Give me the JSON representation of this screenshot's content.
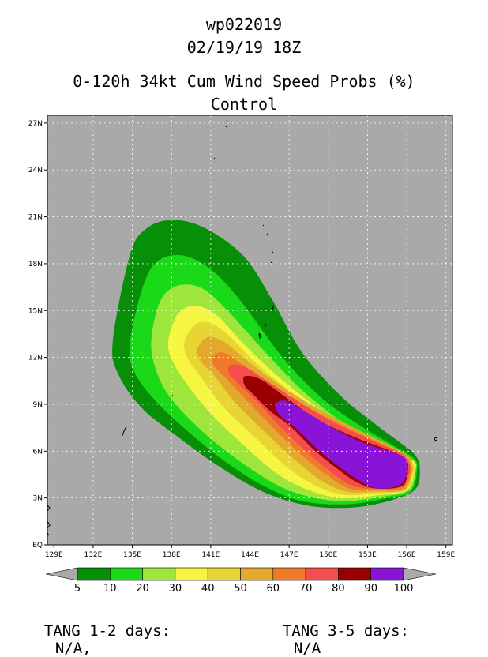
{
  "header": {
    "storm_id": "wp022019",
    "datetime": "02/19/19 18Z",
    "title": "0-120h 34kt Cum Wind Speed Probs (%)",
    "subtitle": "Control"
  },
  "colors": {
    "background_land": "#a9a9a9",
    "levels": [
      "#088f08",
      "#19d919",
      "#9ee63c",
      "#f5f542",
      "#e6d532",
      "#e3a92d",
      "#ee7a2a",
      "#f44d4d",
      "#9b0000",
      "#8a13d8"
    ]
  },
  "chart_data": {
    "type": "heatmap",
    "title": "0-120h 34kt Cum Wind Speed Probs (%)",
    "xlim": [
      128.5,
      159.5
    ],
    "ylim": [
      0,
      27.5
    ],
    "x_ticks": [
      129,
      132,
      135,
      138,
      141,
      144,
      147,
      150,
      153,
      156,
      159
    ],
    "x_tick_labels": [
      "129E",
      "132E",
      "135E",
      "138E",
      "141E",
      "144E",
      "147E",
      "150E",
      "153E",
      "156E",
      "159E"
    ],
    "y_ticks": [
      0,
      3,
      6,
      9,
      12,
      15,
      18,
      21,
      24,
      27
    ],
    "y_tick_labels": [
      "EQ",
      "3N",
      "6N",
      "9N",
      "12N",
      "15N",
      "18N",
      "21N",
      "24N",
      "27N"
    ],
    "levels": [
      5,
      10,
      20,
      30,
      40,
      50,
      60,
      70,
      80,
      90,
      100
    ],
    "level_labels": [
      "5",
      "10",
      "20",
      "30",
      "40",
      "50",
      "60",
      "70",
      "80",
      "90",
      "100"
    ],
    "contours": [
      {
        "level": 5,
        "points": [
          [
            133.5,
            13
          ],
          [
            134.8,
            18.5
          ],
          [
            136,
            20.2
          ],
          [
            138,
            20.8
          ],
          [
            140.5,
            20.3
          ],
          [
            143.5,
            18.5
          ],
          [
            145.7,
            15.7
          ],
          [
            148,
            12.3
          ],
          [
            151,
            9.5
          ],
          [
            153.5,
            7.8
          ],
          [
            155.4,
            6.6
          ],
          [
            156.6,
            5.8
          ],
          [
            157,
            4.9
          ],
          [
            156.7,
            3.6
          ],
          [
            155,
            2.9
          ],
          [
            152,
            2.4
          ],
          [
            148.5,
            2.5
          ],
          [
            145,
            3.4
          ],
          [
            141.5,
            5.1
          ],
          [
            138.5,
            6.9
          ],
          [
            135.8,
            8.7
          ],
          [
            134,
            10.8
          ]
        ]
      },
      {
        "level": 10,
        "points": [
          [
            134.8,
            12.8
          ],
          [
            135.8,
            16.5
          ],
          [
            137,
            18.2
          ],
          [
            139,
            18.5
          ],
          [
            141.2,
            17.5
          ],
          [
            143.5,
            15.4
          ],
          [
            146.5,
            12
          ],
          [
            149.5,
            9.4
          ],
          [
            152.5,
            7.6
          ],
          [
            155.3,
            6.2
          ],
          [
            156.6,
            5.5
          ],
          [
            156.8,
            4.8
          ],
          [
            156.3,
            3.4
          ],
          [
            154.5,
            3
          ],
          [
            151.5,
            2.6
          ],
          [
            148,
            2.8
          ],
          [
            145,
            3.8
          ],
          [
            142,
            5.4
          ],
          [
            139.2,
            7.3
          ],
          [
            136.8,
            9.2
          ],
          [
            135.2,
            11
          ]
        ]
      },
      {
        "level": 20,
        "points": [
          [
            136.5,
            13.5
          ],
          [
            137.2,
            15.7
          ],
          [
            138.5,
            16.6
          ],
          [
            140.4,
            16.4
          ],
          [
            142.5,
            14.8
          ],
          [
            145,
            12.5
          ],
          [
            148,
            9.9
          ],
          [
            151.5,
            7.6
          ],
          [
            154.8,
            6.1
          ],
          [
            156.5,
            5.4
          ],
          [
            156.7,
            4.8
          ],
          [
            156.2,
            3.5
          ],
          [
            154.3,
            3.1
          ],
          [
            151,
            2.8
          ],
          [
            148,
            3.2
          ],
          [
            145.5,
            4.1
          ],
          [
            142.5,
            5.8
          ],
          [
            139.8,
            7.7
          ],
          [
            137.6,
            9.8
          ],
          [
            136.6,
            11.8
          ]
        ]
      },
      {
        "level": 30,
        "points": [
          [
            137.8,
            13.3
          ],
          [
            138.6,
            14.9
          ],
          [
            140,
            15.3
          ],
          [
            141.6,
            14.6
          ],
          [
            143.5,
            12.9
          ],
          [
            146,
            10.9
          ],
          [
            149.5,
            8.6
          ],
          [
            153,
            7
          ],
          [
            155.5,
            5.9
          ],
          [
            156.6,
            5.3
          ],
          [
            156.6,
            4.7
          ],
          [
            156,
            3.5
          ],
          [
            154,
            3.2
          ],
          [
            151,
            3
          ],
          [
            148.5,
            3.5
          ],
          [
            146,
            4.6
          ],
          [
            143.5,
            6.4
          ],
          [
            141,
            8.4
          ],
          [
            139,
            10.5
          ],
          [
            137.9,
            12.1
          ]
        ]
      },
      {
        "level": 40,
        "points": [
          [
            139,
            13
          ],
          [
            139.8,
            14.1
          ],
          [
            141,
            14.2
          ],
          [
            142.5,
            13.3
          ],
          [
            144.5,
            11.6
          ],
          [
            147,
            9.9
          ],
          [
            150.5,
            8
          ],
          [
            153.8,
            6.7
          ],
          [
            155.9,
            5.8
          ],
          [
            156.5,
            5.2
          ],
          [
            156.5,
            4.6
          ],
          [
            155.9,
            3.5
          ],
          [
            153.8,
            3.3
          ],
          [
            151.2,
            3.2
          ],
          [
            149,
            3.8
          ],
          [
            146.8,
            5
          ],
          [
            144.5,
            6.8
          ],
          [
            142,
            8.8
          ],
          [
            140.2,
            10.8
          ],
          [
            139.2,
            12
          ]
        ]
      },
      {
        "level": 50,
        "points": [
          [
            140,
            12.6
          ],
          [
            140.8,
            13.3
          ],
          [
            142,
            13
          ],
          [
            143.5,
            12
          ],
          [
            145.5,
            10.7
          ],
          [
            148,
            9.3
          ],
          [
            151.5,
            7.7
          ],
          [
            154.4,
            6.5
          ],
          [
            156.1,
            5.7
          ],
          [
            156.4,
            5.1
          ],
          [
            156.4,
            4.6
          ],
          [
            155.8,
            3.5
          ],
          [
            153.6,
            3.4
          ],
          [
            151.4,
            3.4
          ],
          [
            149.5,
            4.1
          ],
          [
            147.5,
            5.4
          ],
          [
            145.3,
            7.1
          ],
          [
            143,
            9
          ],
          [
            141.2,
            10.9
          ],
          [
            140.2,
            11.8
          ]
        ]
      },
      {
        "level": 60,
        "points": [
          [
            141.2,
            12.1
          ],
          [
            142,
            12.3
          ],
          [
            143.5,
            11.5
          ],
          [
            145.3,
            10.4
          ],
          [
            147.5,
            9.2
          ],
          [
            150.5,
            7.9
          ],
          [
            153.7,
            6.6
          ],
          [
            155.8,
            5.8
          ],
          [
            156.3,
            5.1
          ],
          [
            156.3,
            4.6
          ],
          [
            155.7,
            3.6
          ],
          [
            153.5,
            3.5
          ],
          [
            151.6,
            3.6
          ],
          [
            150,
            4.4
          ],
          [
            148,
            5.7
          ],
          [
            145.9,
            7.4
          ],
          [
            143.8,
            9.2
          ],
          [
            142,
            10.8
          ],
          [
            141.2,
            11.5
          ]
        ]
      },
      {
        "level": 70,
        "points": [
          [
            142.5,
            11.5
          ],
          [
            143.6,
            11.4
          ],
          [
            145.3,
            10.5
          ],
          [
            147.5,
            9.3
          ],
          [
            150.5,
            7.8
          ],
          [
            153.6,
            6.6
          ],
          [
            155.6,
            5.8
          ],
          [
            156.2,
            5.1
          ],
          [
            156.2,
            4.6
          ],
          [
            155.6,
            3.7
          ],
          [
            153.5,
            3.6
          ],
          [
            151.8,
            3.8
          ],
          [
            150.3,
            4.6
          ],
          [
            148.4,
            5.9
          ],
          [
            146.4,
            7.5
          ],
          [
            144.5,
            9.2
          ],
          [
            143,
            10.4
          ],
          [
            142.4,
            11
          ]
        ]
      },
      {
        "level": 80,
        "points": [
          [
            143.6,
            10.8
          ],
          [
            144.8,
            10.6
          ],
          [
            146.5,
            9.6
          ],
          [
            149,
            8.1
          ],
          [
            152,
            6.9
          ],
          [
            154.8,
            6
          ],
          [
            155.9,
            5.5
          ],
          [
            156.1,
            4.9
          ],
          [
            155.7,
            3.8
          ],
          [
            153.7,
            3.6
          ],
          [
            152.2,
            4
          ],
          [
            150.8,
            4.8
          ],
          [
            149,
            6
          ],
          [
            147.2,
            7.5
          ],
          [
            145.5,
            8.6
          ],
          [
            144.3,
            9.6
          ],
          [
            143.6,
            10.2
          ]
        ]
      },
      {
        "level": 90,
        "points": [
          [
            146,
            9.1
          ],
          [
            146.8,
            9.2
          ],
          [
            148.3,
            8.5
          ],
          [
            150.3,
            7.5
          ],
          [
            152.5,
            6.6
          ],
          [
            154.6,
            6
          ],
          [
            155.8,
            5.6
          ],
          [
            156,
            5
          ],
          [
            155.6,
            3.9
          ],
          [
            153.8,
            3.6
          ],
          [
            152.4,
            4.1
          ],
          [
            151,
            4.9
          ],
          [
            149.2,
            6.1
          ],
          [
            147.6,
            7.4
          ],
          [
            146.4,
            8.2
          ],
          [
            146,
            8.7
          ]
        ]
      }
    ],
    "grid": true,
    "legend": "bottom"
  },
  "footer": {
    "tang_1_2_label": "TANG 1-2 days:",
    "tang_1_2_value": "N/A,",
    "tang_3_5_label": "TANG 3-5 days:",
    "tang_3_5_value": "N/A"
  }
}
